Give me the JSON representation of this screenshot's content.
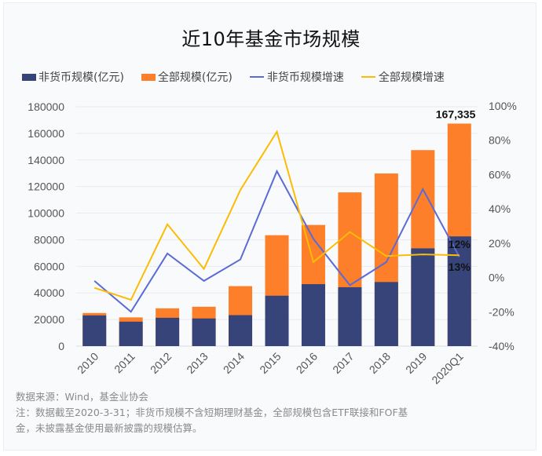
{
  "chart_data": {
    "type": "bar",
    "title": "近10年基金市场规模",
    "categories": [
      "2010",
      "2011",
      "2012",
      "2013",
      "2014",
      "2015",
      "2016",
      "2017",
      "2018",
      "2019",
      "2020Q1"
    ],
    "series": [
      {
        "name": "非货币规模(亿元)",
        "kind": "bar",
        "axis": "left",
        "color": "#36447a",
        "values": [
          23100,
          18400,
          21300,
          20800,
          23300,
          37900,
          46600,
          44300,
          48200,
          73500,
          82500
        ]
      },
      {
        "name": "全部规模(亿元)",
        "kind": "bar",
        "axis": "left",
        "color": "#fd7f29",
        "values": [
          24900,
          21600,
          28400,
          29600,
          45100,
          83400,
          91100,
          115600,
          129800,
          147400,
          167335
        ]
      },
      {
        "name": "非货币规模增速",
        "kind": "line",
        "axis": "right",
        "color": "#5b6bd6",
        "values": [
          -2,
          -20,
          14,
          -2,
          10.5,
          62,
          22.5,
          -4.5,
          9,
          51.5,
          12
        ]
      },
      {
        "name": "全部规模增速",
        "kind": "line",
        "axis": "right",
        "color": "#fbbc05",
        "values": [
          -6,
          -13,
          31,
          5,
          51,
          85,
          9,
          26.5,
          12.5,
          13.5,
          13
        ]
      }
    ],
    "left_axis": {
      "min": 0,
      "max": 180000,
      "step": 20000,
      "ticks": [
        "0",
        "20000",
        "40000",
        "60000",
        "80000",
        "100000",
        "120000",
        "140000",
        "160000",
        "180000"
      ]
    },
    "right_axis": {
      "min": -40,
      "max": 100,
      "step": 20,
      "unit": "%",
      "ticks": [
        "-40%",
        "-20%",
        "0%",
        "20%",
        "40%",
        "60%",
        "80%",
        "100%"
      ]
    },
    "grid": true,
    "legend_position": "top",
    "annotations": [
      {
        "text": "167,335",
        "category": "2020Q1",
        "series": "全部规模(亿元)"
      },
      {
        "text": "12%",
        "category": "2020Q1",
        "series": "非货币规模增速"
      },
      {
        "text": "13%",
        "category": "2020Q1",
        "series": "全部规模增速"
      }
    ]
  },
  "legend": [
    {
      "label": "非货币规模(亿元)",
      "type": "bar",
      "color": "#36447a"
    },
    {
      "label": "全部规模(亿元)",
      "type": "bar",
      "color": "#fd7f29"
    },
    {
      "label": "非货币规模增速",
      "type": "line",
      "color": "#5b6bd6"
    },
    {
      "label": "全部规模增速",
      "type": "line",
      "color": "#fbbc05"
    }
  ],
  "footer": {
    "source": "数据来源：Wind，基金业协会",
    "note_line1": "注：数据截至2020-3-31；非货币规模不含短期理财基金，全部规模包含ETF联接和FOF基",
    "note_line2": "金，未披露基金使用最新披露的规模估算。"
  }
}
